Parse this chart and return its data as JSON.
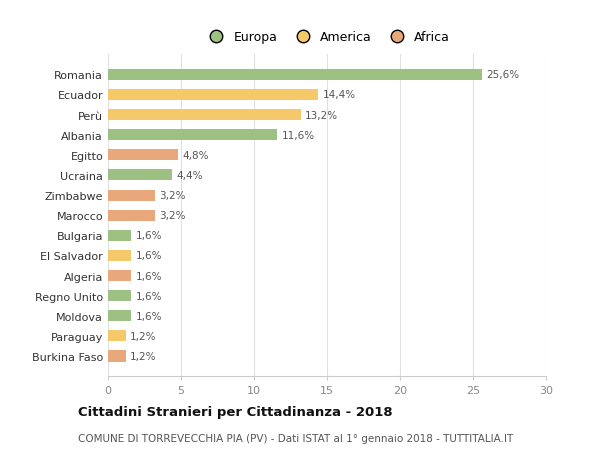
{
  "categories": [
    "Burkina Faso",
    "Paraguay",
    "Moldova",
    "Regno Unito",
    "Algeria",
    "El Salvador",
    "Bulgaria",
    "Marocco",
    "Zimbabwe",
    "Ucraina",
    "Egitto",
    "Albania",
    "Perù",
    "Ecuador",
    "Romania"
  ],
  "values": [
    1.2,
    1.2,
    1.6,
    1.6,
    1.6,
    1.6,
    1.6,
    3.2,
    3.2,
    4.4,
    4.8,
    11.6,
    13.2,
    14.4,
    25.6
  ],
  "colors": [
    "#e8a87c",
    "#f5c96a",
    "#9dc183",
    "#9dc183",
    "#e8a87c",
    "#f5c96a",
    "#9dc183",
    "#e8a87c",
    "#e8a87c",
    "#9dc183",
    "#e8a87c",
    "#9dc183",
    "#f5c96a",
    "#f5c96a",
    "#9dc183"
  ],
  "labels": [
    "1,2%",
    "1,2%",
    "1,6%",
    "1,6%",
    "1,6%",
    "1,6%",
    "1,6%",
    "3,2%",
    "3,2%",
    "4,4%",
    "4,8%",
    "11,6%",
    "13,2%",
    "14,4%",
    "25,6%"
  ],
  "legend_labels": [
    "Europa",
    "America",
    "Africa"
  ],
  "legend_colors": [
    "#9dc183",
    "#f5c96a",
    "#e8a87c"
  ],
  "title": "Cittadini Stranieri per Cittadinanza - 2018",
  "subtitle": "COMUNE DI TORREVECCHIA PIA (PV) - Dati ISTAT al 1° gennaio 2018 - TUTTITALIA.IT",
  "xlim": [
    0,
    30
  ],
  "background_color": "#ffffff",
  "grid_color": "#e0e0e0",
  "label_color": "#555555",
  "tick_color": "#888888"
}
